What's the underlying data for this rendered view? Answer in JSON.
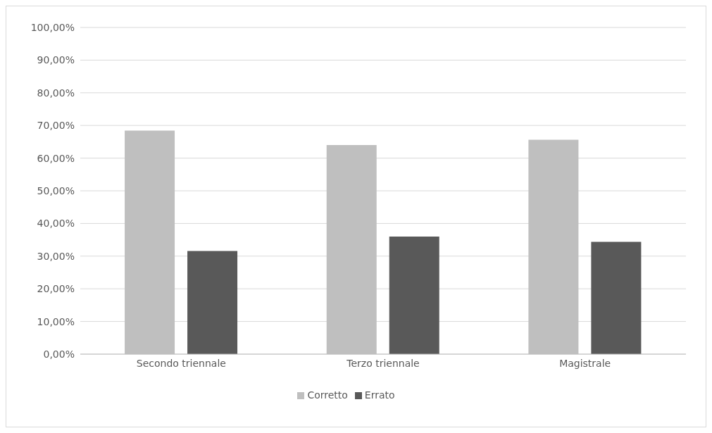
{
  "chart_data": {
    "type": "bar",
    "categories": [
      "Secondo triennale",
      "Terzo triennale",
      "Magistrale"
    ],
    "series": [
      {
        "name": "Corretto",
        "color": "#bfbfbf",
        "values": [
          68.4,
          64.0,
          65.6
        ]
      },
      {
        "name": "Errato",
        "color": "#595959",
        "values": [
          31.6,
          36.0,
          34.4
        ]
      }
    ],
    "ylim": [
      0,
      100
    ],
    "yticks": [
      {
        "value": 0,
        "label": "0,00%"
      },
      {
        "value": 10,
        "label": "10,00%"
      },
      {
        "value": 20,
        "label": "20,00%"
      },
      {
        "value": 30,
        "label": "30,00%"
      },
      {
        "value": 40,
        "label": "40,00%"
      },
      {
        "value": 50,
        "label": "50,00%"
      },
      {
        "value": 60,
        "label": "60,00%"
      },
      {
        "value": 70,
        "label": "70,00%"
      },
      {
        "value": 80,
        "label": "80,00%"
      },
      {
        "value": 90,
        "label": "90,00%"
      },
      {
        "value": 100,
        "label": "100,00%"
      }
    ],
    "grid": "y",
    "legend": "bottom"
  }
}
